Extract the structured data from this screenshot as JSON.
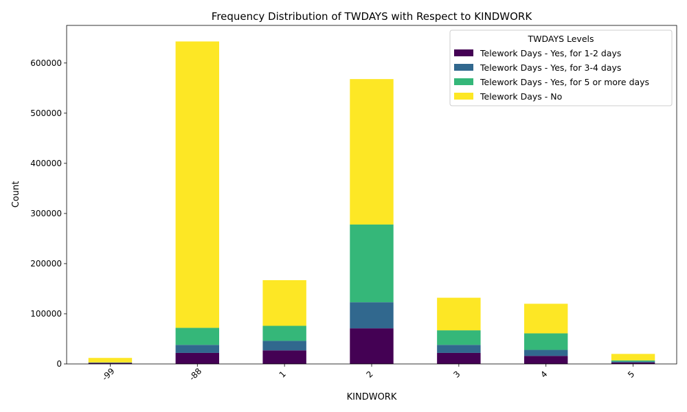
{
  "chart_data": {
    "type": "bar",
    "stacked": true,
    "title": "Frequency Distribution of TWDAYS with Respect to KINDWORK",
    "xlabel": "KINDWORK",
    "ylabel": "Count",
    "categories": [
      "-99",
      "-88",
      "1",
      "2",
      "3",
      "4",
      "5"
    ],
    "ylim": [
      0,
      675000
    ],
    "yticks": [
      0,
      100000,
      200000,
      300000,
      400000,
      500000,
      600000
    ],
    "legend_title": "TWDAYS Levels",
    "legend_position": "top-right",
    "grid": false,
    "series": [
      {
        "name": "Telework Days - Yes, for 1-2 days",
        "color": "#440154",
        "values": [
          2000,
          22000,
          27000,
          71000,
          22000,
          16000,
          3000
        ]
      },
      {
        "name": "Telework Days - Yes, for 3-4 days",
        "color": "#31688e",
        "values": [
          500,
          16000,
          19000,
          52000,
          16000,
          12000,
          2000
        ]
      },
      {
        "name": "Telework Days - Yes, for 5 or more days",
        "color": "#35b779",
        "values": [
          500,
          34000,
          30000,
          155000,
          29000,
          33000,
          2000
        ]
      },
      {
        "name": "Telework Days - No",
        "color": "#fde725",
        "values": [
          9000,
          571000,
          91000,
          290000,
          65000,
          59000,
          13000
        ]
      }
    ]
  }
}
